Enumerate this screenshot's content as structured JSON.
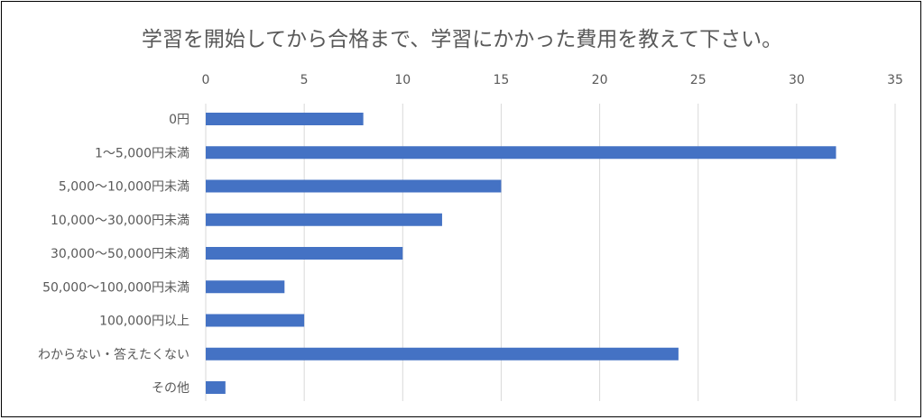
{
  "chart_data": {
    "type": "bar",
    "orientation": "horizontal",
    "title": "学習を開始してから合格まで、学習にかかった費用を教えて下さい。",
    "categories": [
      "0円",
      "1～5,000円未満",
      "5,000～10,000円未満",
      "10,000～30,000円未満",
      "30,000～50,000円未満",
      "50,000～100,000円未満",
      "100,000円以上",
      "わからない・答えたくない",
      "その他"
    ],
    "values": [
      8,
      32,
      15,
      12,
      10,
      4,
      5,
      24,
      1
    ],
    "xlim": [
      0,
      35
    ],
    "xticks": [
      "0",
      "5",
      "10",
      "15",
      "20",
      "25",
      "30",
      "35"
    ],
    "x_axis_position": "top",
    "grid": true,
    "legend": "none",
    "bar_color": "#4472C4",
    "gridline_color": "#D9D9D9",
    "text_color": "#595959"
  }
}
